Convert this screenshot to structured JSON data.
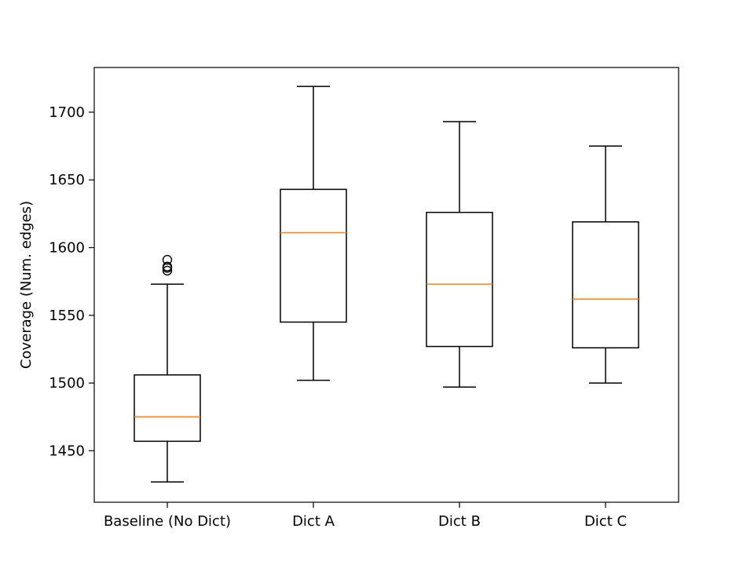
{
  "chart_data": {
    "type": "box",
    "title": "",
    "xlabel": "",
    "ylabel": "Coverage (Num. edges)",
    "ylim": [
      1412,
      1733
    ],
    "yticks": [
      1450,
      1500,
      1550,
      1600,
      1650,
      1700
    ],
    "grid": false,
    "categories": [
      "Baseline (No Dict)",
      "Dict A",
      "Dict B",
      "Dict C"
    ],
    "boxes": [
      {
        "whisker_low": 1427,
        "q1": 1457,
        "median": 1475,
        "q3": 1506,
        "whisker_high": 1573,
        "outliers": [
          1583,
          1585,
          1586,
          1591
        ]
      },
      {
        "whisker_low": 1502,
        "q1": 1545,
        "median": 1611,
        "q3": 1643,
        "whisker_high": 1719,
        "outliers": []
      },
      {
        "whisker_low": 1497,
        "q1": 1527,
        "median": 1573,
        "q3": 1626,
        "whisker_high": 1693,
        "outliers": []
      },
      {
        "whisker_low": 1500,
        "q1": 1526,
        "median": 1562,
        "q3": 1619,
        "whisker_high": 1675,
        "outliers": []
      }
    ],
    "colors": {
      "box": "#000000",
      "median": "#ff7f0e",
      "outlier": "#000000"
    }
  }
}
